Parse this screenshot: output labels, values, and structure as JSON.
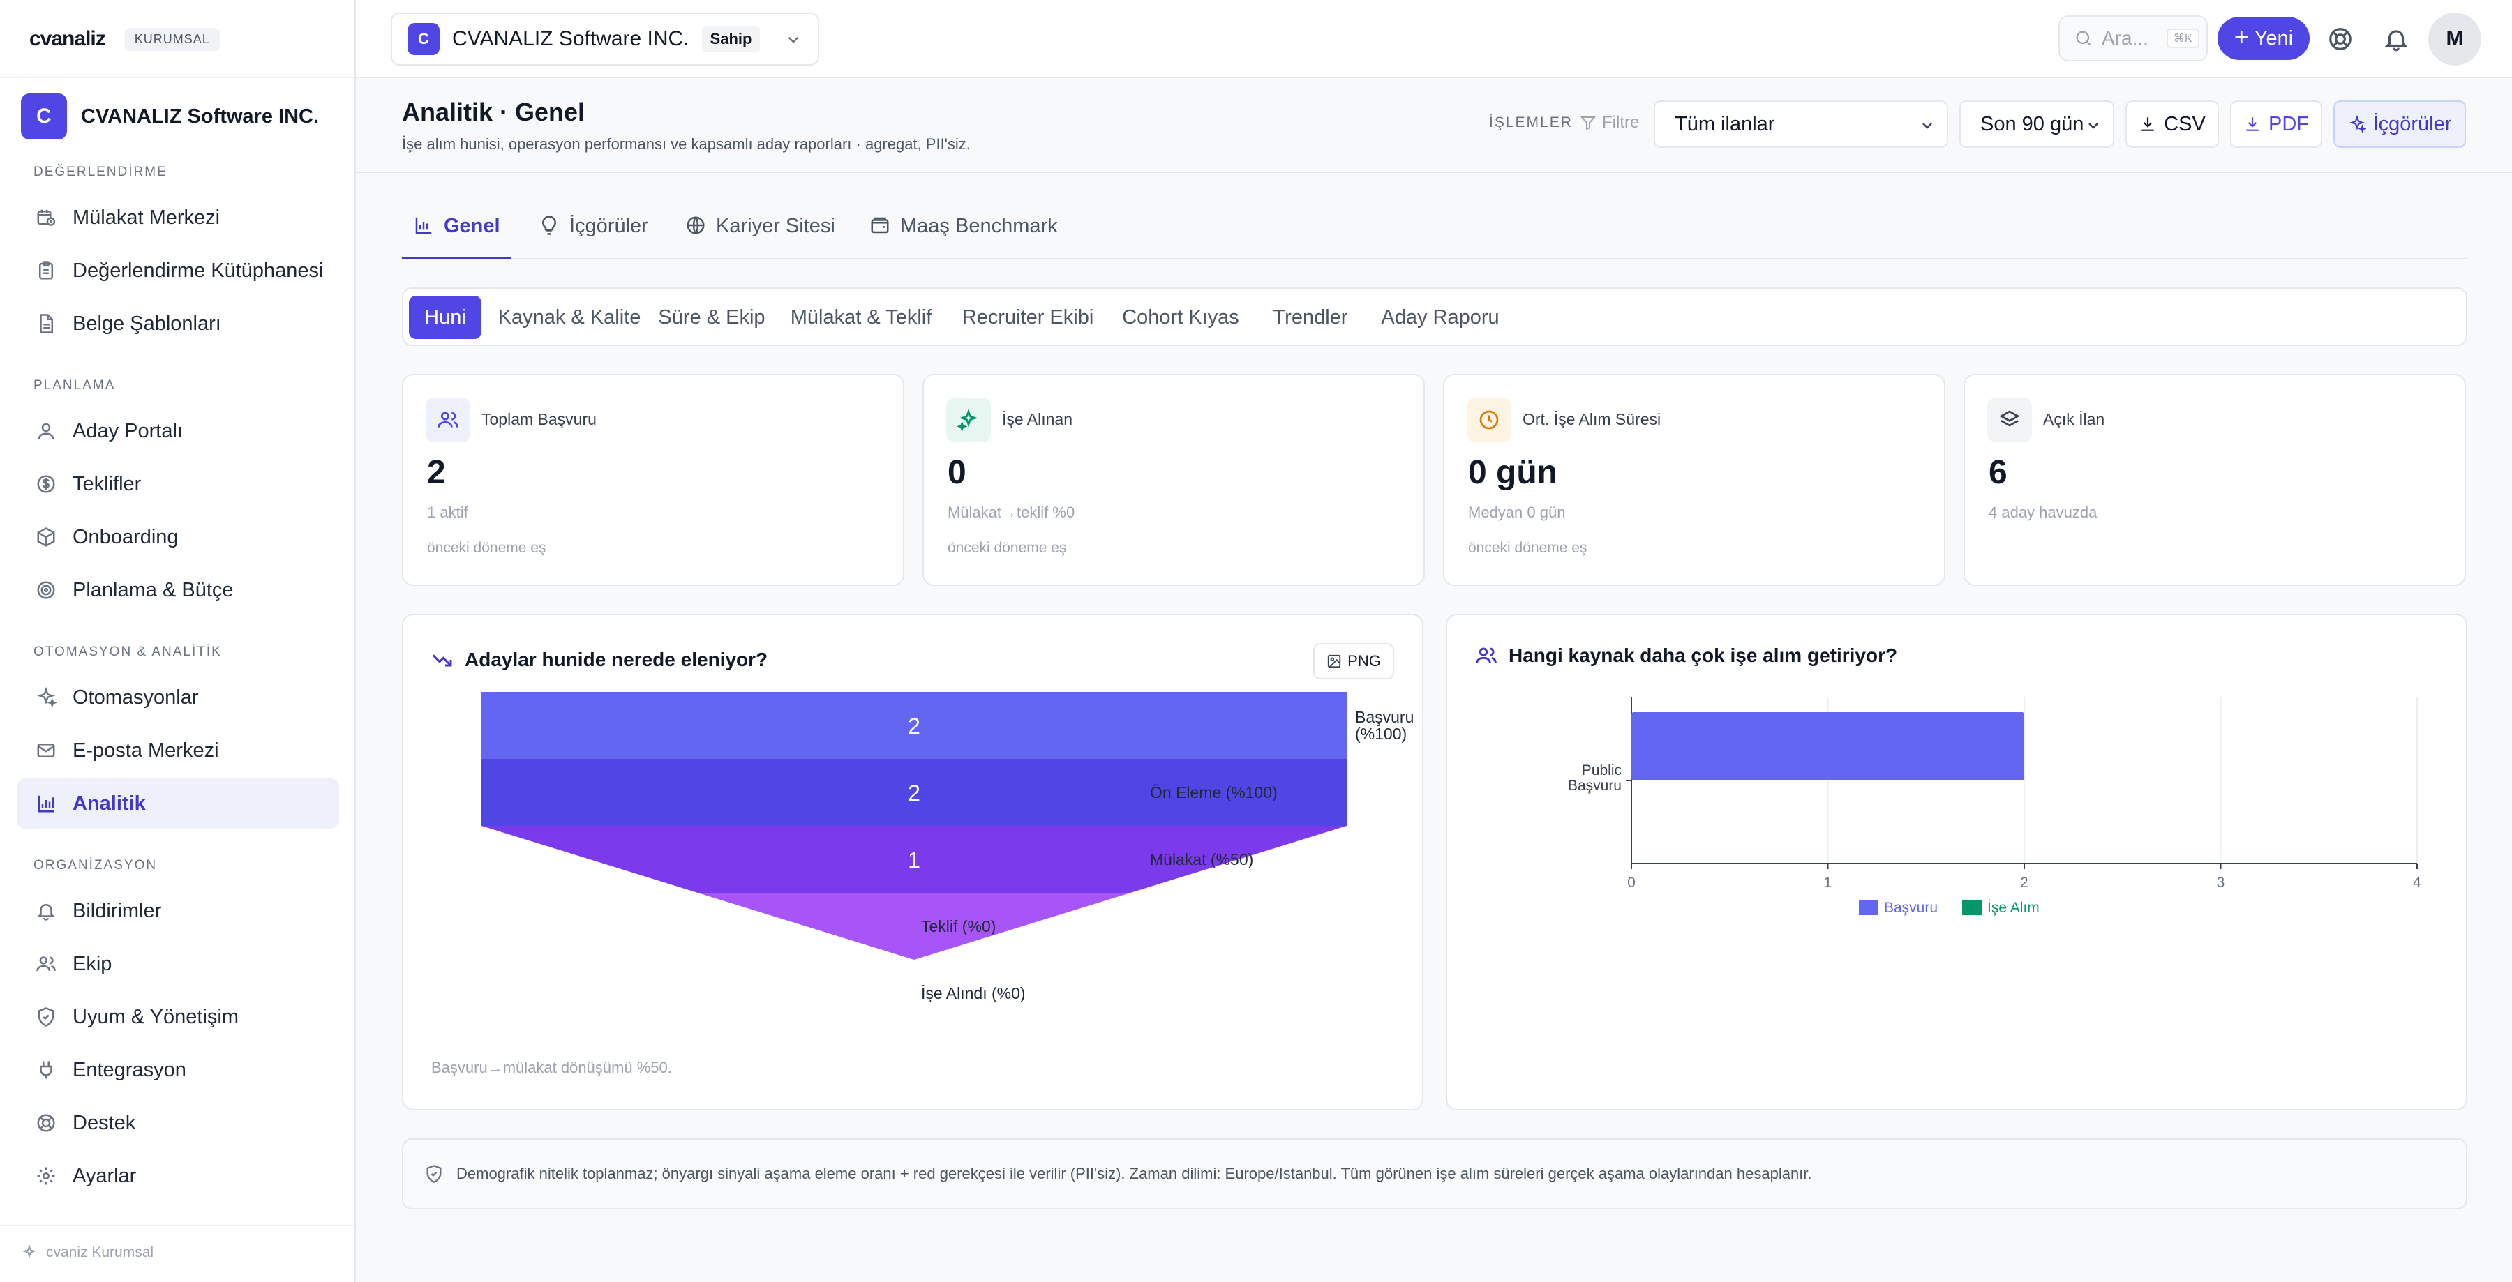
{
  "sidebar": {
    "brand": "cvanaliz",
    "badge": "KURUMSAL",
    "org_initial": "C",
    "org_name": "CVANALIZ Software INC.",
    "sections": {
      "evaluation": "DEĞERLENDİRME",
      "planning": "PLANLAMA",
      "automation": "OTOMASYON & ANALİTİK",
      "organization": "ORGANİZASYON"
    },
    "items": [
      {
        "label": "Mülakat Merkezi",
        "icon": "calendar-clock-icon"
      },
      {
        "label": "Değerlendirme Kütüphanesi",
        "icon": "clipboard-icon"
      },
      {
        "label": "Belge Şablonları",
        "icon": "file-icon"
      },
      {
        "label": "Aday Portalı",
        "icon": "user-icon"
      },
      {
        "label": "Teklifler",
        "icon": "dollar-icon"
      },
      {
        "label": "Onboarding",
        "icon": "package-icon"
      },
      {
        "label": "Planlama & Bütçe",
        "icon": "target-icon"
      },
      {
        "label": "Otomasyonlar",
        "icon": "sparkles-icon"
      },
      {
        "label": "E-posta Merkezi",
        "icon": "mail-icon"
      },
      {
        "label": "Analitik",
        "icon": "bar-chart-icon"
      },
      {
        "label": "Bildirimler",
        "icon": "bell-icon"
      },
      {
        "label": "Ekip",
        "icon": "users-icon"
      },
      {
        "label": "Uyum & Yönetişim",
        "icon": "shield-icon"
      },
      {
        "label": "Entegrasyon",
        "icon": "plug-icon"
      },
      {
        "label": "Destek",
        "icon": "lifebuoy-icon"
      },
      {
        "label": "Ayarlar",
        "icon": "gear-icon"
      }
    ],
    "active_item": "Analitik",
    "footer": "cvaniz Kurumsal"
  },
  "topbar": {
    "workspace_initial": "C",
    "workspace_name": "CVANALIZ Software INC.",
    "workspace_role": "Sahip",
    "search_placeholder": "Ara...",
    "search_shortcut": "⌘K",
    "new_button": "Yeni",
    "user_initial": "M"
  },
  "header": {
    "title": "Analitik · Genel",
    "subtitle": "İşe alım hunisi, operasyon performansı ve kapsamlı aday raporları · agregat, PII'siz.",
    "ops_label": "İŞLEMLER",
    "filter_label": "Filtre",
    "listing_select": "Tüm ilanlar",
    "period_select": "Son 90 gün",
    "csv_button": "CSV",
    "pdf_button": "PDF",
    "insights_button": "İçgörüler"
  },
  "main_tabs": [
    {
      "label": "Genel",
      "icon": "bar-chart-icon",
      "active": true
    },
    {
      "label": "İçgörüler",
      "icon": "lightbulb-icon",
      "active": false
    },
    {
      "label": "Kariyer Sitesi",
      "icon": "globe-icon",
      "active": false
    },
    {
      "label": "Maaş Benchmark",
      "icon": "wallet-icon",
      "active": false
    }
  ],
  "sub_tabs": [
    {
      "label": "Huni",
      "active": true
    },
    {
      "label": "Kaynak & Kalite",
      "active": false
    },
    {
      "label": "Süre & Ekip",
      "active": false
    },
    {
      "label": "Mülakat & Teklif",
      "active": false
    },
    {
      "label": "Recruiter Ekibi",
      "active": false
    },
    {
      "label": "Cohort Kıyas",
      "active": false
    },
    {
      "label": "Trendler",
      "active": false
    },
    {
      "label": "Aday Raporu",
      "active": false
    }
  ],
  "kpis": [
    {
      "label": "Toplam Başvuru",
      "value": "2",
      "sub": "1 aktif",
      "trend": "önceki döneme eş",
      "icon": "users-icon",
      "color": "#4f46e5",
      "bg": "#eef0fb"
    },
    {
      "label": "İşe Alınan",
      "value": "0",
      "sub": "Mülakat→teklif %0",
      "trend": "önceki döneme eş",
      "icon": "sparkles-icon",
      "color": "#059669",
      "bg": "#e8f7f1"
    },
    {
      "label": "Ort. İşe Alım Süresi",
      "value": "0 gün",
      "sub": "Medyan 0 gün",
      "trend": "önceki döneme eş",
      "icon": "clock-icon",
      "color": "#d97706",
      "bg": "#fdf4e3"
    },
    {
      "label": "Açık İlan",
      "value": "6",
      "sub": "4 aday havuzda",
      "trend": "",
      "icon": "layers-icon",
      "color": "#374151",
      "bg": "#f3f4f6"
    }
  ],
  "funnel_card": {
    "title": "Adaylar hunide nerede eleniyor?",
    "png_button": "PNG",
    "note": "Başvuru→mülakat dönüşümü %50."
  },
  "source_card": {
    "title": "Hangi kaynak daha çok işe alım getiriyor?"
  },
  "chart_data": [
    {
      "type": "funnel",
      "stages": [
        {
          "label": "Başvuru (%100)",
          "value": 2,
          "color": "#6366f1"
        },
        {
          "label": "Ön Eleme (%100)",
          "value": 2,
          "color": "#4f46e5"
        },
        {
          "label": "Mülakat (%50)",
          "value": 1,
          "color": "#7c3aed"
        },
        {
          "label": "Teklif (%0)",
          "value": 0,
          "color": "#a855f7"
        },
        {
          "label": "İşe Alındı (%0)",
          "value": 0,
          "color": "#059669"
        }
      ]
    },
    {
      "type": "bar",
      "orientation": "horizontal",
      "categories": [
        "Public Başvuru"
      ],
      "series": [
        {
          "name": "Başvuru",
          "values": [
            2
          ],
          "color": "#6366f1"
        },
        {
          "name": "İşe Alım",
          "values": [
            0
          ],
          "color": "#059669"
        }
      ],
      "xlim": [
        0,
        4
      ],
      "xticks": [
        0,
        1,
        2,
        3,
        4
      ],
      "legend": "bottom"
    }
  ],
  "notice": "Demografik nitelik toplanmaz; önyargı sinyali aşama eleme oranı + red gerekçesi ile verilir (PII'siz). Zaman dilimi: Europe/Istanbul. Tüm görünen işe alım süreleri gerçek aşama olaylarından hesaplanır."
}
